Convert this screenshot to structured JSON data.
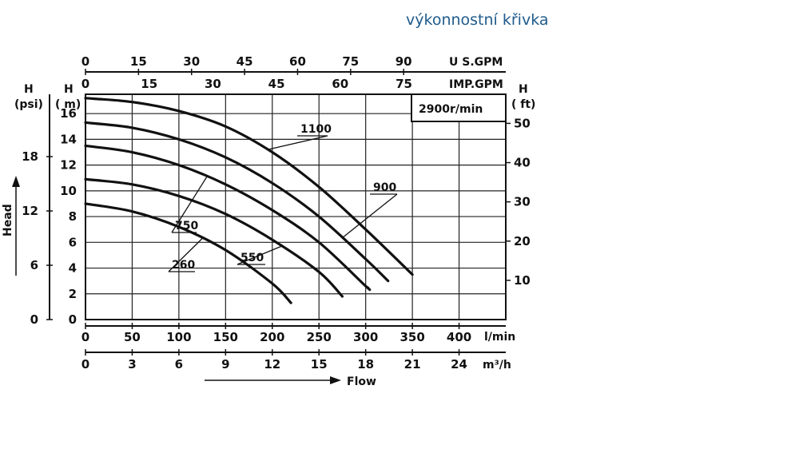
{
  "page_title": "výkonnostní křivka",
  "colors": {
    "title": "#1f5b8c",
    "curves": "#111111",
    "grid": "#222222"
  },
  "chart_data": {
    "type": "line",
    "title": "výkonnostní křivka",
    "speed_label": "2900r/min",
    "x_axis": {
      "label": "l/min",
      "range": [
        0,
        450
      ],
      "ticks": [
        0,
        50,
        100,
        150,
        200,
        250,
        300,
        350,
        400
      ],
      "tick_labels": [
        "0",
        "50",
        "100",
        "150",
        "200",
        "250",
        "300",
        "350",
        "400"
      ]
    },
    "x_axis_m3h": {
      "label": "m³/h",
      "ticks": [
        0,
        3,
        6,
        9,
        12,
        15,
        18,
        21,
        24
      ],
      "tick_labels": [
        "0",
        "3",
        "6",
        "9",
        "12",
        "15",
        "18",
        "21",
        "24"
      ]
    },
    "x_axis_usgpm": {
      "label": "U S.GPM",
      "ticks": [
        0,
        15,
        30,
        45,
        60,
        75,
        90
      ],
      "tick_labels": [
        "0",
        "15",
        "30",
        "45",
        "60",
        "75",
        "90"
      ]
    },
    "x_axis_impgpm": {
      "label": "IMP.GPM",
      "ticks": [
        0,
        15,
        30,
        45,
        60,
        75
      ],
      "tick_labels": [
        "0",
        "15",
        "30",
        "45",
        "60",
        "75"
      ]
    },
    "y_axis": {
      "label_top": "H",
      "label_unit": "( m)",
      "range": [
        0,
        17.5
      ],
      "ticks": [
        0,
        2,
        4,
        6,
        8,
        10,
        12,
        14,
        16
      ],
      "tick_labels": [
        "0",
        "2",
        "4",
        "6",
        "8",
        "10",
        "12",
        "14",
        "16"
      ]
    },
    "y_axis_psi": {
      "label_top": "H",
      "label_unit": "(psi)",
      "ticks": [
        0,
        6,
        12,
        18
      ],
      "tick_labels": [
        "0",
        "6",
        "12",
        "18"
      ]
    },
    "y_axis_ft": {
      "label_top": "H",
      "label_unit": "( ft)",
      "ticks": [
        10,
        20,
        30,
        40,
        50
      ],
      "tick_labels": [
        "10",
        "20",
        "30",
        "40",
        "50"
      ]
    },
    "head_label": "Head",
    "flow_label": "Flow",
    "grid": true,
    "series": [
      {
        "name": "1100",
        "x": [
          0,
          50,
          100,
          150,
          200,
          250,
          300,
          350
        ],
        "y": [
          17.2,
          16.9,
          16.2,
          15.0,
          13.0,
          10.3,
          7.0,
          3.5
        ]
      },
      {
        "name": "900",
        "x": [
          0,
          50,
          100,
          150,
          200,
          250,
          300,
          324
        ],
        "y": [
          15.3,
          14.9,
          14.0,
          12.6,
          10.6,
          8.0,
          4.7,
          3.0
        ]
      },
      {
        "name": "750",
        "x": [
          0,
          50,
          100,
          150,
          200,
          250,
          300,
          302
        ],
        "y": [
          13.5,
          13.0,
          12.0,
          10.5,
          8.5,
          6.0,
          2.6,
          2.5
        ]
      },
      {
        "name": "550",
        "x": [
          0,
          50,
          100,
          150,
          200,
          250,
          275
        ],
        "y": [
          10.9,
          10.5,
          9.6,
          8.2,
          6.2,
          3.7,
          1.8
        ]
      },
      {
        "name": "260",
        "x": [
          0,
          50,
          100,
          150,
          200,
          220
        ],
        "y": [
          9.0,
          8.4,
          7.2,
          5.4,
          2.8,
          1.3
        ]
      }
    ],
    "series_labels": [
      "1100",
      "900",
      "750",
      "550",
      "260"
    ]
  }
}
